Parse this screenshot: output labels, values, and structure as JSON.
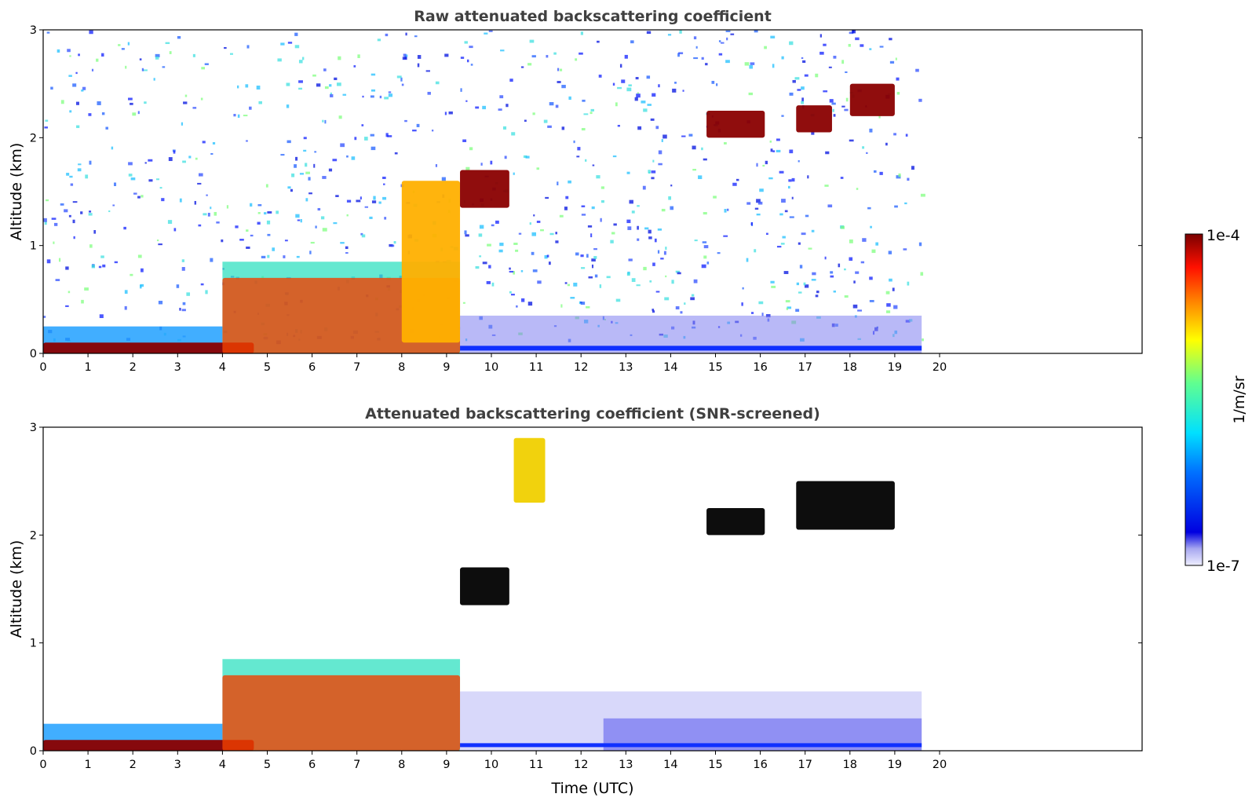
{
  "chart_data": [
    {
      "type": "heatmap",
      "title": "Raw attenuated backscattering coefficient",
      "xlabel": "",
      "ylabel": "Altitude (km)",
      "xlim": [
        0,
        24
      ],
      "ylim": [
        0,
        3
      ],
      "xticks": [
        "0",
        "1",
        "2",
        "3",
        "4",
        "5",
        "6",
        "7",
        "8",
        "9",
        "10",
        "11",
        "12",
        "13",
        "14",
        "15",
        "16",
        "17",
        "18",
        "19",
        "20"
      ],
      "yticks": [
        "0",
        "1",
        "2",
        "3"
      ],
      "data_extent_hours": [
        0,
        19.6
      ],
      "features": [
        {
          "name": "surface layer",
          "x": [
            0,
            4.7
          ],
          "y": [
            0,
            0.1
          ],
          "level": "very high"
        },
        {
          "name": "boundary layer",
          "x": [
            4,
            9.3
          ],
          "y": [
            0,
            0.7
          ],
          "level": "high"
        },
        {
          "name": "rising layer",
          "x": [
            8,
            9.3
          ],
          "y": [
            0.1,
            1.6
          ],
          "level": "medium-high"
        },
        {
          "name": "cloud",
          "x": [
            9.3,
            10.4
          ],
          "y": [
            1.35,
            1.7
          ],
          "level": "very high"
        },
        {
          "name": "cloud",
          "x": [
            14.8,
            16.1
          ],
          "y": [
            2.0,
            2.25
          ],
          "level": "very high"
        },
        {
          "name": "cloud",
          "x": [
            16.8,
            17.6
          ],
          "y": [
            2.05,
            2.3
          ],
          "level": "very high"
        },
        {
          "name": "cloud",
          "x": [
            18.0,
            19.0
          ],
          "y": [
            2.2,
            2.5
          ],
          "level": "very high"
        }
      ],
      "colorbar": {
        "label": "1/m/sr",
        "min_label": "1e-7",
        "max_label": "1e-4",
        "colormap": "jet"
      }
    },
    {
      "type": "heatmap",
      "title": "Attenuated backscattering coefficient (SNR-screened)",
      "xlabel": "Time (UTC)",
      "ylabel": "Altitude (km)",
      "xlim": [
        0,
        24
      ],
      "ylim": [
        0,
        3
      ],
      "xticks": [
        "0",
        "1",
        "2",
        "3",
        "4",
        "5",
        "6",
        "7",
        "8",
        "9",
        "10",
        "11",
        "12",
        "13",
        "14",
        "15",
        "16",
        "17",
        "18",
        "19",
        "20"
      ],
      "yticks": [
        "0",
        "1",
        "2",
        "3"
      ],
      "data_extent_hours": [
        0,
        19.6
      ],
      "features": [
        {
          "name": "surface layer",
          "x": [
            0,
            4.7
          ],
          "y": [
            0,
            0.1
          ],
          "level": "very high"
        },
        {
          "name": "boundary layer",
          "x": [
            4,
            9.3
          ],
          "y": [
            0,
            0.7
          ],
          "level": "high"
        },
        {
          "name": "cloud (saturated)",
          "x": [
            9.3,
            10.4
          ],
          "y": [
            1.35,
            1.7
          ],
          "level": "saturated"
        },
        {
          "name": "aerosol plume",
          "x": [
            10.5,
            11.2
          ],
          "y": [
            2.3,
            2.9
          ],
          "level": "medium"
        },
        {
          "name": "cloud (saturated)",
          "x": [
            14.8,
            16.1
          ],
          "y": [
            2.0,
            2.25
          ],
          "level": "saturated"
        },
        {
          "name": "cloud (saturated)",
          "x": [
            16.8,
            19.0
          ],
          "y": [
            2.05,
            2.5
          ],
          "level": "saturated"
        }
      ]
    }
  ],
  "colorbar": {
    "label": "1/m/sr",
    "min_label": "1e-7",
    "max_label": "1e-4"
  },
  "colors": {
    "title_text": "#404040",
    "background": "#ffffff"
  }
}
